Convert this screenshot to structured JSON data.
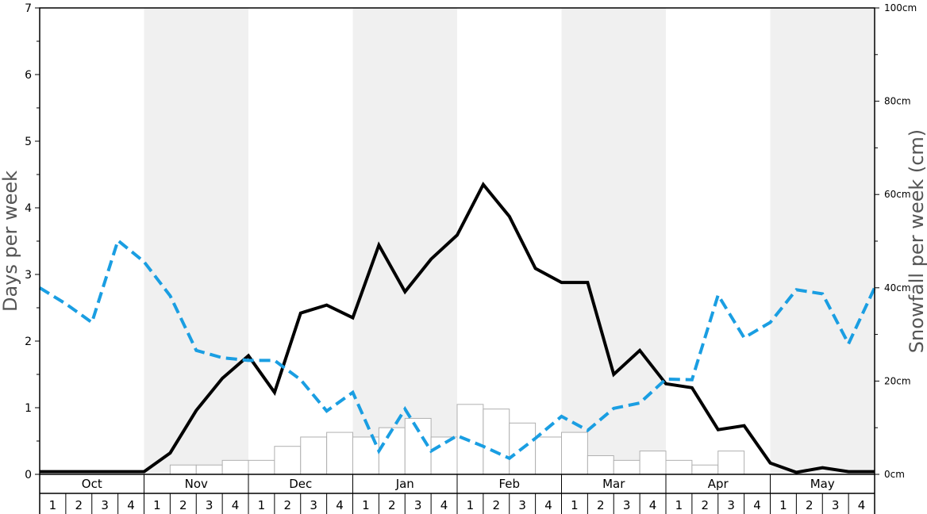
{
  "chart_data": {
    "type": "bar+line",
    "ylabel_left": "Days per week",
    "ylabel_right": "Snowfall per week (cm)",
    "ylim_left": [
      0,
      7
    ],
    "ylim_right": [
      0,
      100
    ],
    "left_ticks": [
      "0",
      "1",
      "2",
      "3",
      "4",
      "5",
      "6",
      "7"
    ],
    "right_ticks": [
      "0cm",
      "20cm",
      "40cm",
      "60cm",
      "80cm",
      "100cm"
    ],
    "months": [
      "Oct",
      "Nov",
      "Dec",
      "Jan",
      "Feb",
      "Mar",
      "Apr",
      "May"
    ],
    "weeks": [
      "1",
      "2",
      "3",
      "4"
    ],
    "shaded_months": [
      "Nov",
      "Jan",
      "Mar",
      "May"
    ],
    "series": [
      {
        "kind": "bar",
        "axis": "right",
        "values": [
          0,
          0,
          0,
          0,
          0,
          2,
          2,
          3,
          3,
          6,
          8,
          9,
          8,
          10,
          12,
          8,
          15,
          14,
          11,
          8,
          9,
          4,
          3,
          5,
          3,
          2,
          5,
          0,
          0,
          0,
          0,
          0
        ]
      },
      {
        "kind": "line",
        "style": "solid",
        "axis": "left",
        "color": "#000000",
        "values": [
          0.04,
          0.04,
          0.04,
          0.04,
          0.04,
          0.32,
          0.96,
          1.44,
          1.78,
          1.23,
          2.42,
          2.54,
          2.35,
          3.44,
          2.74,
          3.23,
          3.59,
          4.35,
          3.87,
          3.09,
          2.88,
          2.88,
          1.5,
          1.86,
          1.36,
          1.3,
          0.67,
          0.73,
          0.17,
          0.03,
          0.1,
          0.04,
          0.04
        ]
      },
      {
        "kind": "line",
        "style": "dashed",
        "axis": "left",
        "color": "#1a9ee2",
        "values": [
          2.8,
          2.56,
          2.28,
          3.51,
          3.19,
          2.68,
          1.86,
          1.75,
          1.71,
          1.71,
          1.42,
          0.95,
          1.23,
          0.35,
          0.98,
          0.35,
          0.58,
          0.42,
          0.24,
          0.54,
          0.87,
          0.66,
          0.99,
          1.07,
          1.43,
          1.42,
          2.69,
          2.05,
          2.28,
          2.77,
          2.71,
          1.96,
          2.8
        ]
      }
    ],
    "grid": false,
    "legend": "none"
  }
}
